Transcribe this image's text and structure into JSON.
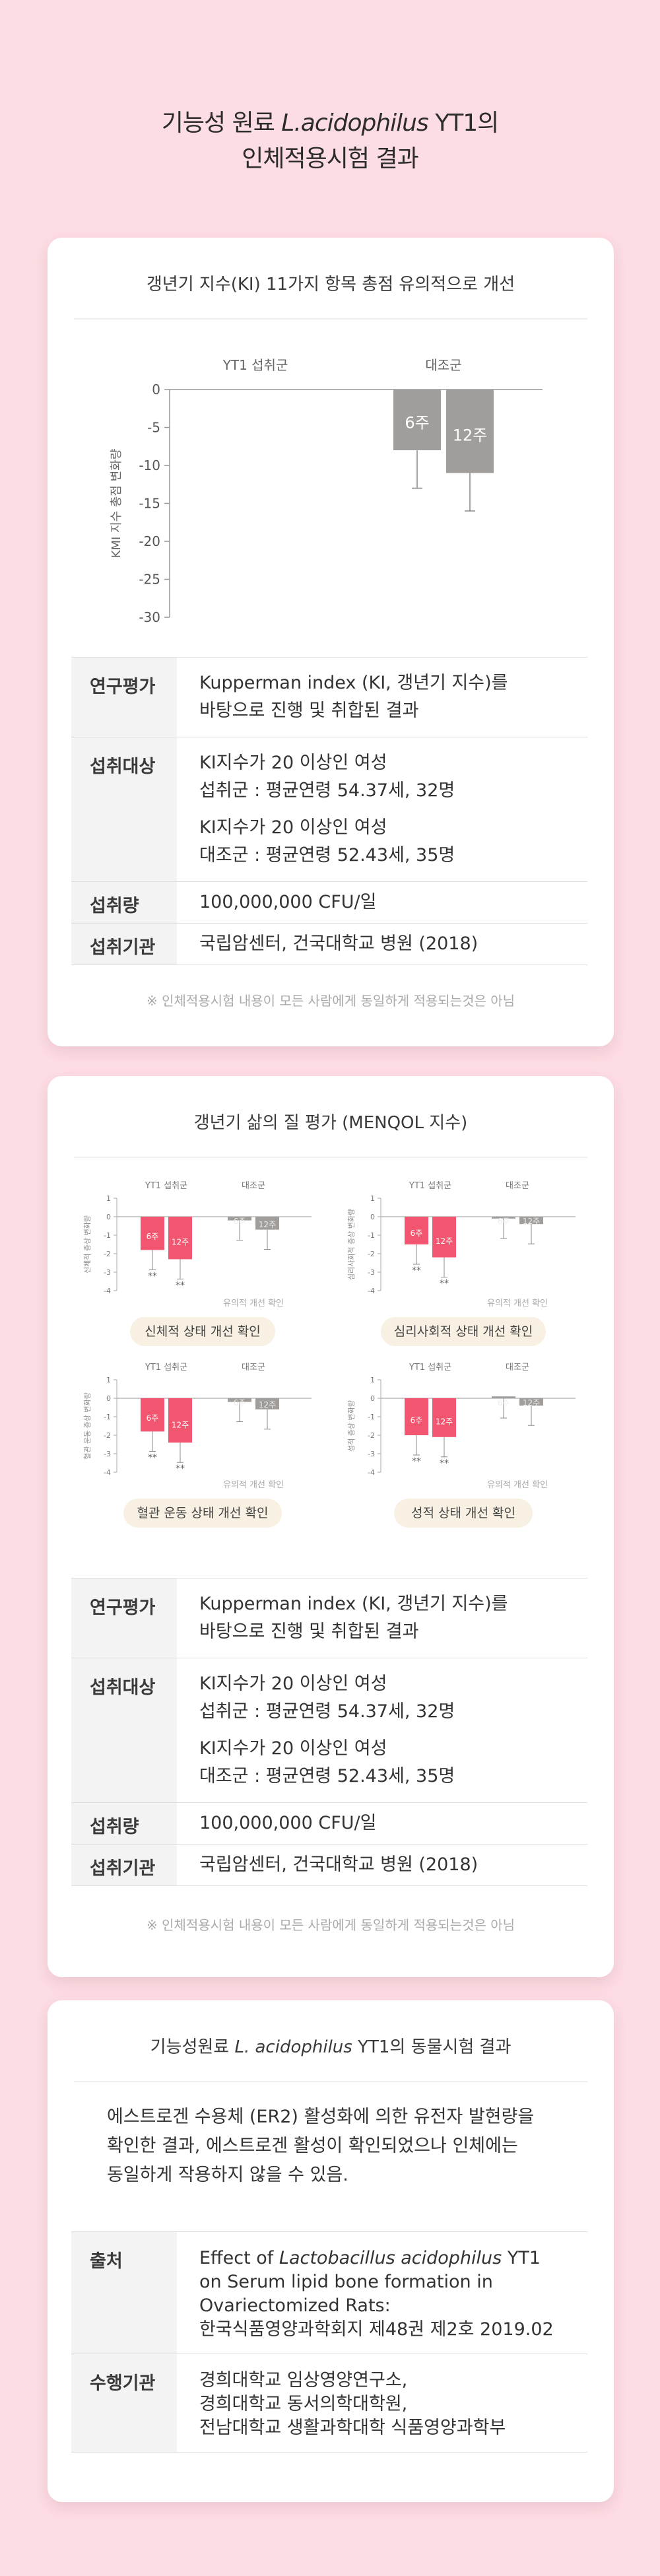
{
  "header": {
    "title_line1_a": "기능성 원료 ",
    "title_line1_latin": "L.acidophilus",
    "title_line1_b": " YT1의",
    "title_line2": "인체적용시험 결과"
  },
  "card1": {
    "title": "갱년기 지수(KI) 11가지 항목 총점 유의적으로 개선",
    "rows": [
      {
        "key": "연구평가",
        "lines": [
          "Kupperman index (KI, 갱년기 지수)를",
          "바탕으로 진행 및 취합된 결과"
        ]
      },
      {
        "key": "섭취대상",
        "lines": [
          "KI지수가 20 이상인 여성",
          "섭취군 : 평균연령 54.37세, 32명",
          "KI지수가 20 이상인 여성",
          "대조군 : 평균연령 52.43세, 35명"
        ]
      },
      {
        "key": "섭취량",
        "lines": [
          "100,000,000 CFU/일"
        ]
      },
      {
        "key": "섭취기관",
        "lines": [
          "국립암센터, 건국대학교 병원 (2018)"
        ]
      }
    ],
    "note": "※ 인체적용시험 내용이 모든 사람에게 동일하게 적용되는것은 아님"
  },
  "card2": {
    "title": "갱년기 삶의 질 평가 (MENQOL 지수)",
    "rows": [
      {
        "key": "연구평가",
        "lines": [
          "Kupperman index (KI, 갱년기 지수)를",
          "바탕으로 진행 및 취합된 결과"
        ]
      },
      {
        "key": "섭취대상",
        "lines": [
          "KI지수가 20 이상인 여성",
          "섭취군 : 평균연령 54.37세, 32명",
          "KI지수가 20 이상인 여성",
          "대조군 : 평균연령 52.43세, 35명"
        ]
      },
      {
        "key": "섭취량",
        "lines": [
          "100,000,000 CFU/일"
        ]
      },
      {
        "key": "섭취기관",
        "lines": [
          "국립암센터, 건국대학교 병원 (2018)"
        ]
      }
    ],
    "note": "※ 인체적용시험 내용이 모든 사람에게 동일하게 적용되는것은 아님"
  },
  "card3": {
    "title_a": "기능성원료 ",
    "title_latin": "L. acidophilus",
    "title_b": " YT1의 동물시험 결과",
    "para": [
      "에스트로겐 수용체 (ER2) 활성화에 의한 유전자 발현량을",
      "확인한 결과, 에스트로겐 활성이 확인되었으나 인체에는",
      "동일하게 작용하지 않을 수 있음."
    ],
    "source_key": "출처",
    "source_pre": "Effect of ",
    "source_latin": "Lactobacillus acidophilus",
    "source_post": " YT1",
    "source_lines": [
      "on Serum lipid bone formation in",
      "Ovariectomized Rats:",
      "한국식품영양과학회지 제48권 제2호 2019.02"
    ],
    "org_key": "수행기관",
    "org_lines": [
      "경희대학교 임상영양연구소,",
      "경희대학교 동서의학대학원,",
      "전남대학교 생활과학대학 식품영양과학부"
    ]
  },
  "colors": {
    "pink_bar": "#f2556f",
    "gray_bar": "#a09d9a",
    "bg": "#fddde4"
  },
  "chart_data": [
    {
      "type": "bar",
      "groups": [
        "YT1 섭취군",
        "대조군"
      ],
      "series": [
        {
          "name": "6주",
          "values": [
            0,
            -8
          ]
        },
        {
          "name": "12주",
          "values": [
            0,
            -11
          ]
        }
      ],
      "errors": [
        0,
        5,
        0,
        5
      ],
      "ylabel": "KMI 지수 총점 변화량",
      "yticks": [
        "0",
        "-5",
        "-10",
        "-15",
        "-20",
        "-25",
        "-30"
      ],
      "ylim": [
        -30,
        0
      ]
    },
    {
      "type": "bar",
      "caption": "신체적 상태 개선 확인",
      "ylabel": "신체적 증상 변화량",
      "groups": [
        "YT1 섭취군",
        "대조군"
      ],
      "series": [
        {
          "name": "6주",
          "values": [
            -1.8,
            -0.2
          ]
        },
        {
          "name": "12주",
          "values": [
            -2.3,
            -0.7
          ]
        }
      ],
      "sig": "유의적 개선 확인",
      "yticks": [
        "1",
        "0",
        "-1",
        "-2",
        "-3",
        "-4"
      ],
      "ylim": [
        -4,
        1
      ]
    },
    {
      "type": "bar",
      "caption": "심리사회적 상태 개선 확인",
      "ylabel": "심리사회적 증상 변화량",
      "groups": [
        "YT1 섭취군",
        "대조군"
      ],
      "series": [
        {
          "name": "6주",
          "values": [
            -1.5,
            -0.1
          ]
        },
        {
          "name": "12주",
          "values": [
            -2.2,
            -0.4
          ]
        }
      ],
      "sig": "유의적 개선 확인",
      "yticks": [
        "1",
        "0",
        "-1",
        "-2",
        "-3",
        "-4"
      ],
      "ylim": [
        -4,
        1
      ]
    },
    {
      "type": "bar",
      "caption": "혈관 운동 상태 개선 확인",
      "ylabel": "혈관 운동 증상 변화량",
      "groups": [
        "YT1 섭취군",
        "대조군"
      ],
      "series": [
        {
          "name": "6주",
          "values": [
            -1.8,
            -0.2
          ]
        },
        {
          "name": "12주",
          "values": [
            -2.4,
            -0.6
          ]
        }
      ],
      "sig": "유의적 개선 확인",
      "yticks": [
        "1",
        "0",
        "-1",
        "-2",
        "-3",
        "-4"
      ],
      "ylim": [
        -4,
        1
      ]
    },
    {
      "type": "bar",
      "caption": "성적 상태 개선 확인",
      "ylabel": "성적 증상 변화량",
      "groups": [
        "YT1 섭취군",
        "대조군"
      ],
      "series": [
        {
          "name": "6주",
          "values": [
            -2.0,
            0.1
          ]
        },
        {
          "name": "12주",
          "values": [
            -2.1,
            -0.4
          ]
        }
      ],
      "sig": "유의적 개선 확인",
      "yticks": [
        "1",
        "0",
        "-1",
        "-2",
        "-3",
        "-4"
      ],
      "ylim": [
        -4,
        1
      ]
    }
  ]
}
